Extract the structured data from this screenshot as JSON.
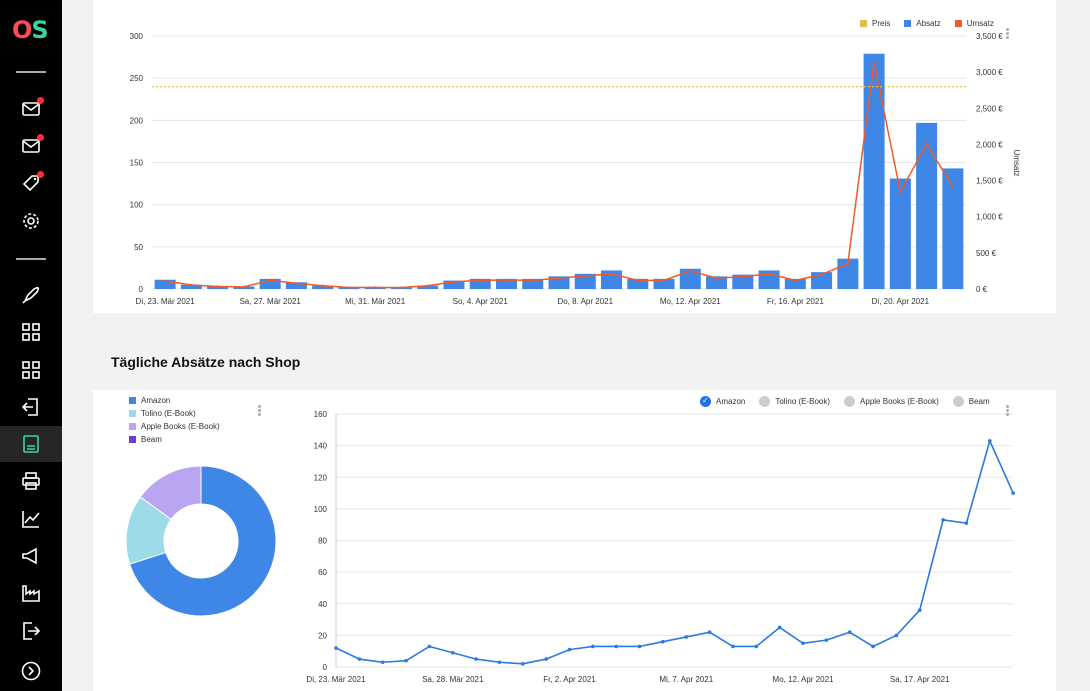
{
  "sidebar": {
    "logo_o": "O",
    "logo_s": "S",
    "items": [
      {
        "icon": "mail-icon",
        "badge": true
      },
      {
        "icon": "mail-icon",
        "badge": true
      },
      {
        "icon": "tag-icon",
        "badge": true
      },
      {
        "icon": "gear-icon",
        "badge": false
      },
      {
        "icon": "rocket-icon",
        "badge": false
      },
      {
        "icon": "grid-icon",
        "badge": false
      },
      {
        "icon": "grid-icon",
        "badge": false
      },
      {
        "icon": "import-icon",
        "badge": false
      },
      {
        "icon": "document-icon",
        "badge": false,
        "active": true
      },
      {
        "icon": "printer-icon",
        "badge": false
      },
      {
        "icon": "chart-icon",
        "badge": false
      },
      {
        "icon": "megaphone-icon",
        "badge": false
      },
      {
        "icon": "factory-icon",
        "badge": false
      },
      {
        "icon": "logout-icon",
        "badge": false
      },
      {
        "icon": "chevron-right-icon",
        "badge": false
      }
    ]
  },
  "section_title": "Tägliche Absätze nach Shop",
  "colors": {
    "blue": "#3f87e6",
    "orange": "#f05a2a",
    "gold": "#e8b84a",
    "lightblue": "#9ddbea",
    "lavender": "#b9a5f2",
    "purple": "#6a3dd8",
    "linecolor": "#2a7bdc"
  },
  "chart_data": [
    {
      "type": "bar",
      "legend": [
        "Preis",
        "Absatz",
        "Umsatz"
      ],
      "xlabel": "",
      "ylabel_right": "Umsatz",
      "y_left_ticks": [
        "0",
        "50",
        "100",
        "150",
        "200",
        "250",
        "300"
      ],
      "y_right_ticks": [
        "0 €",
        "500 €",
        "1,000 €",
        "1,500 €",
        "2,000 €",
        "2,500 €",
        "3,000 €",
        "3,500 €"
      ],
      "ylim": [
        0,
        300
      ],
      "y2lim": [
        0,
        3500
      ],
      "x_tick_labels": [
        "Di, 23. Mär 2021",
        "Sa, 27. Mär 2021",
        "Mi, 31. Mär 2021",
        "So, 4. Apr 2021",
        "Do, 8. Apr 2021",
        "Mo, 12. Apr 2021",
        "Fr, 16. Apr 2021",
        "Di, 20. Apr 2021"
      ],
      "series": [
        {
          "name": "Absatz",
          "kind": "bar",
          "values": [
            11,
            5,
            3,
            3,
            12,
            8,
            4,
            2,
            2,
            2,
            4,
            10,
            12,
            12,
            12,
            15,
            18,
            22,
            12,
            12,
            24,
            15,
            17,
            22,
            12,
            20,
            36,
            279,
            131,
            197,
            143
          ]
        },
        {
          "name": "Umsatz",
          "kind": "line",
          "values": [
            110,
            55,
            35,
            30,
            120,
            80,
            45,
            20,
            22,
            20,
            45,
            100,
            120,
            125,
            120,
            150,
            180,
            210,
            120,
            120,
            250,
            150,
            170,
            210,
            120,
            200,
            350,
            3140,
            1340,
            2010,
            1410
          ]
        },
        {
          "name": "Preis",
          "kind": "line",
          "values": [
            2800
          ]
        }
      ]
    },
    {
      "type": "pie",
      "donut": true,
      "legend": [
        "Amazon",
        "Tolino (E-Book)",
        "Apple Books (E-Book)",
        "Beam"
      ],
      "values": [
        70,
        15,
        15,
        0
      ]
    },
    {
      "type": "line",
      "legend": [
        "Amazon",
        "Tolino (E-Book)",
        "Apple Books (E-Book)",
        "Beam"
      ],
      "legend_checked": [
        true,
        false,
        false,
        false
      ],
      "y_ticks": [
        "0",
        "20",
        "40",
        "60",
        "80",
        "100",
        "120",
        "140",
        "160"
      ],
      "ylim": [
        0,
        160
      ],
      "x_tick_labels": [
        "Di, 23. Mär 2021",
        "Sa, 28. Mär 2021",
        "Fr, 2. Apr 2021",
        "Mi, 7. Apr 2021",
        "Mo, 12. Apr 2021",
        "Sa, 17. Apr 2021"
      ],
      "series": [
        {
          "name": "Amazon",
          "values": [
            12,
            5,
            3,
            4,
            13,
            9,
            5,
            3,
            2,
            5,
            11,
            13,
            13,
            13,
            16,
            19,
            22,
            13,
            13,
            25,
            15,
            17,
            22,
            13,
            20,
            36,
            93,
            91,
            143,
            110
          ]
        }
      ]
    }
  ]
}
